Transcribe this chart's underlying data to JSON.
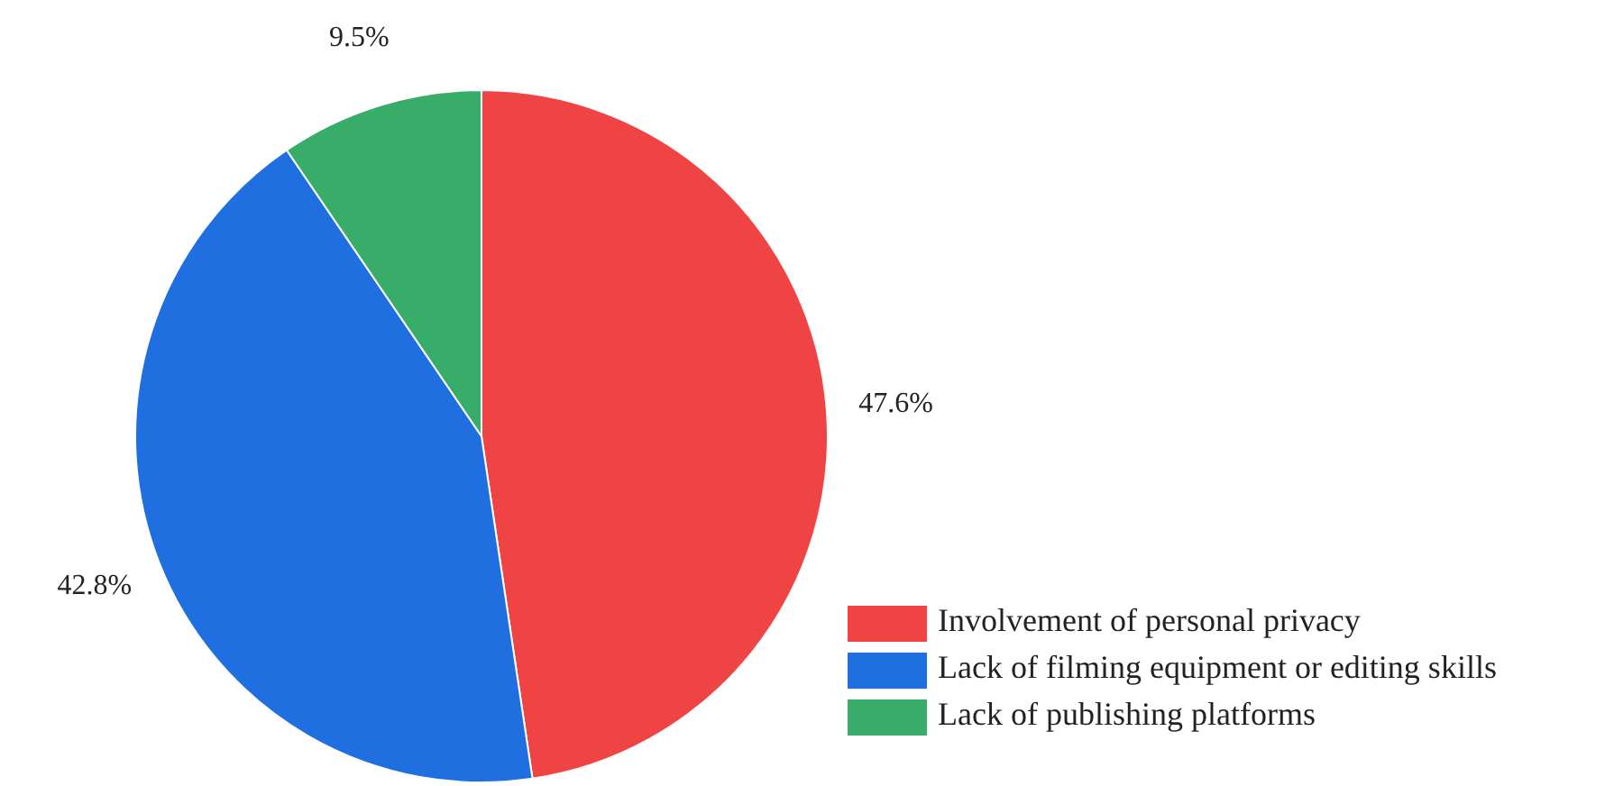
{
  "chart_data": {
    "type": "pie",
    "categories": [
      "Involvement of personal privacy",
      "Lack of filming equipment or editing skills",
      "Lack of publishing platforms"
    ],
    "values": [
      47.6,
      42.8,
      9.5
    ],
    "value_labels": [
      "47.6%",
      "42.8%",
      "9.5%"
    ],
    "colors": [
      "#f04343",
      "#1f6fe0",
      "#38ad6a"
    ],
    "legend": "bottom right"
  }
}
